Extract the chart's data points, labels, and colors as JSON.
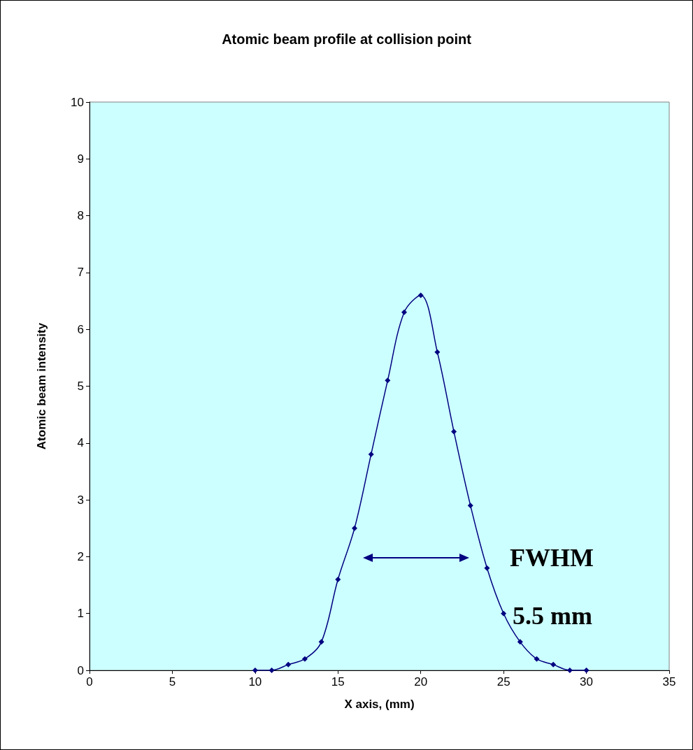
{
  "chart_data": {
    "type": "line",
    "title": "Atomic beam profile at collision point",
    "xlabel": "X axis, (mm)",
    "ylabel": "Atomic beam intensity",
    "x": [
      10,
      11,
      12,
      13,
      14,
      15,
      16,
      17,
      18,
      19,
      20,
      21,
      22,
      23,
      24,
      25,
      26,
      27,
      28,
      29,
      30
    ],
    "series": [
      {
        "color": "#000080",
        "values": [
          0,
          0,
          0.1,
          0.2,
          0.5,
          1.6,
          2.5,
          3.8,
          5.1,
          6.3,
          6.6,
          5.6,
          4.2,
          2.9,
          1.8,
          1.0,
          0.5,
          0.2,
          0.1,
          0,
          0
        ]
      }
    ],
    "xlim": [
      0,
      35
    ],
    "xticks": [
      0,
      5,
      10,
      15,
      20,
      25,
      30,
      35
    ],
    "ylim": [
      0,
      10
    ],
    "yticks": [
      0,
      1,
      2,
      3,
      4,
      5,
      6,
      7,
      8,
      9,
      10
    ],
    "marker": "diamond",
    "line_style": "solid",
    "grid": false,
    "annotations": [
      "FWHM",
      "5.5 mm"
    ]
  }
}
